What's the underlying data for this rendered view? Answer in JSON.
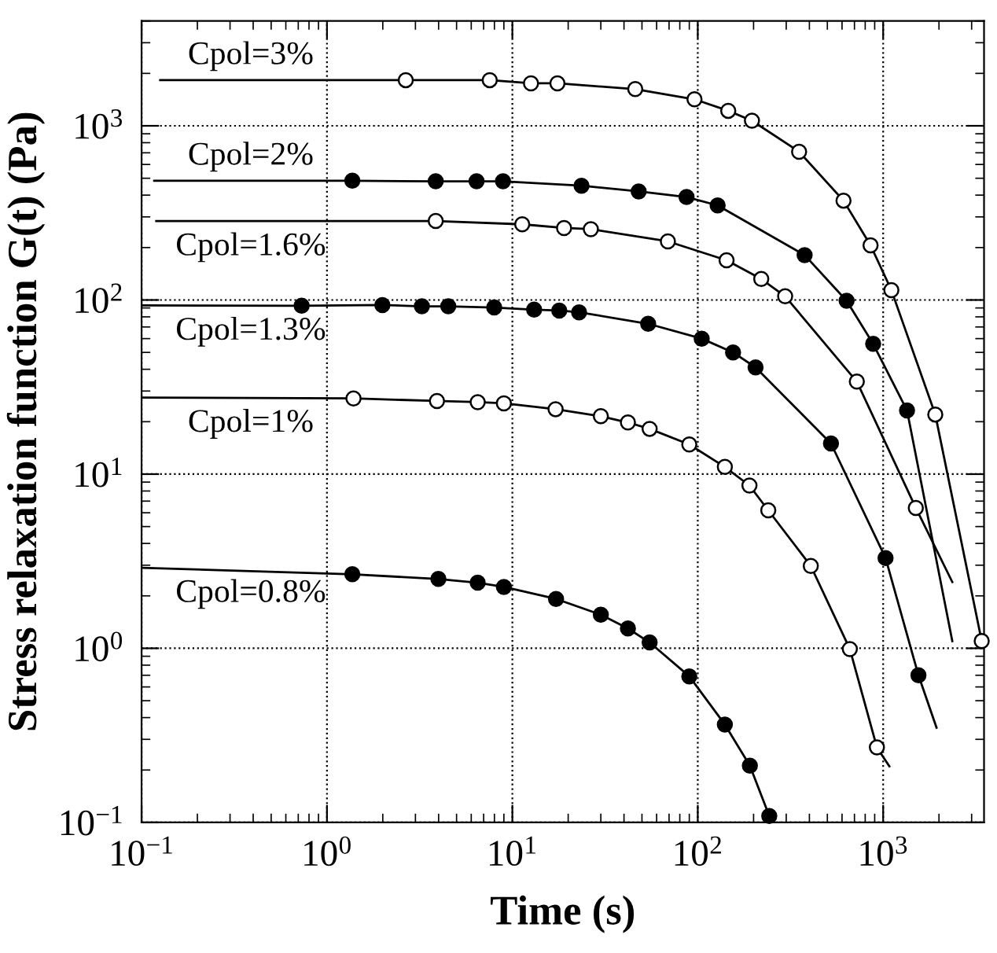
{
  "chart_data": {
    "type": "scatter",
    "xlabel": "Time (s)",
    "ylabel": "Stress relaxation function G(t) (Pa)",
    "log": "xy",
    "grid": true,
    "marker": "circle",
    "xlim": [
      0.1,
      3500
    ],
    "ylim": [
      0.1,
      4000
    ],
    "xticks": [
      {
        "value": 0.1,
        "label": "10$^{−1}$"
      },
      {
        "value": 1,
        "label": "10$^{0}$"
      },
      {
        "value": 10,
        "label": "10$^{1}$"
      },
      {
        "value": 100,
        "label": "10$^{2}$"
      },
      {
        "value": 1000,
        "label": "10$^{3}$"
      }
    ],
    "yticks": [
      {
        "value": 0.1,
        "label": "10$^{−1}$"
      },
      {
        "value": 1,
        "label": "10$^{0}$"
      },
      {
        "value": 10,
        "label": "10$^{1}$"
      },
      {
        "value": 100,
        "label": "10$^{2}$"
      },
      {
        "value": 1000,
        "label": "10$^{3}$"
      }
    ],
    "series": [
      {
        "name": "Cpol=3%",
        "type": "line",
        "color": "#000000",
        "x": [
          0.126,
          2.66,
          7.55,
          12.6,
          17.5,
          46,
          96,
          146,
          196,
          352,
          611,
          855,
          1107,
          1910,
          3400
        ],
        "values": [
          1830,
          1830,
          1830,
          1755,
          1755,
          1625,
          1420,
          1220,
          1070,
          710,
          372,
          206,
          114,
          22,
          1.1
        ],
        "marker": "none"
      },
      {
        "name": "Cpol=2%",
        "type": "line",
        "color": "#000000",
        "x": [
          0.117,
          1.37,
          3.86,
          6.41,
          8.9,
          23.6,
          48,
          87,
          128,
          377,
          635,
          883,
          1345,
          2360
        ],
        "values": [
          484,
          484,
          480,
          480,
          480,
          453,
          420,
          390,
          349,
          181,
          99,
          56,
          23.2,
          1.1
        ],
        "marker": "none"
      },
      {
        "name": "Cpol=1.6%",
        "type": "line",
        "color": "#000000",
        "x": [
          0.12,
          3.86,
          11.3,
          19,
          26.5,
          69,
          143,
          220,
          296,
          721,
          1500,
          2360
        ],
        "values": [
          284,
          284,
          272,
          259,
          255,
          217,
          169,
          132,
          105,
          34,
          6.4,
          2.4
        ],
        "marker": "none"
      },
      {
        "name": "Cpol=1.3%",
        "type": "line",
        "color": "#000000",
        "x": [
          0.1,
          0.73,
          1.99,
          3.25,
          4.51,
          7.98,
          13.1,
          17.9,
          22.9,
          54,
          105,
          155,
          205,
          523,
          1030,
          1550,
          1940
        ],
        "values": [
          93,
          92.7,
          93.5,
          92,
          92,
          90.5,
          88,
          87,
          85,
          73,
          60,
          50,
          41,
          15,
          3.3,
          0.7,
          0.35
        ],
        "marker": "none"
      },
      {
        "name": "Cpol=1%",
        "type": "line",
        "color": "#000000",
        "x": [
          0.1,
          1.39,
          3.92,
          6.5,
          9,
          17.1,
          30,
          42,
          55,
          90,
          140,
          190,
          240,
          407,
          661,
          925,
          1080
        ],
        "values": [
          27.5,
          27.2,
          26.3,
          25.9,
          25.5,
          23.6,
          21.5,
          19.8,
          18.2,
          14.8,
          11,
          8.6,
          6.2,
          2.97,
          0.99,
          0.27,
          0.21
        ],
        "marker": "none"
      },
      {
        "name": "Cpol=0.8%",
        "type": "line",
        "color": "#000000",
        "x": [
          0.1,
          1.37,
          3.99,
          6.5,
          9,
          17.2,
          30,
          42,
          55,
          90,
          140,
          191,
          243
        ],
        "values": [
          2.9,
          2.66,
          2.5,
          2.38,
          2.25,
          1.92,
          1.56,
          1.3,
          1.08,
          0.69,
          0.365,
          0.212,
          0.109
        ],
        "marker": "none"
      },
      {
        "color": "#ffffff",
        "x": [
          2.66,
          7.55,
          12.6,
          17.5,
          46,
          96,
          146,
          196,
          352,
          611,
          855,
          1107,
          1910,
          3400
        ],
        "values": [
          1830,
          1830,
          1755,
          1755,
          1625,
          1420,
          1220,
          1070,
          710,
          372,
          206,
          114,
          22,
          1.1
        ]
      },
      {
        "color": "#000000",
        "x": [
          1.37,
          3.86,
          6.41,
          8.9,
          23.6,
          48,
          87,
          128,
          377,
          635,
          883,
          1345
        ],
        "values": [
          484,
          480,
          480,
          480,
          453,
          420,
          390,
          349,
          181,
          99,
          56,
          23.2
        ]
      },
      {
        "color": "#ffffff",
        "x": [
          3.86,
          11.3,
          19,
          26.5,
          69,
          143,
          220,
          296,
          721,
          1500
        ],
        "values": [
          284,
          272,
          259,
          255,
          217,
          169,
          132,
          105,
          34,
          6.4
        ]
      },
      {
        "color": "#000000",
        "x": [
          0.73,
          1.99,
          3.25,
          4.51,
          7.98,
          13.1,
          17.9,
          22.9,
          54,
          105,
          155,
          205,
          523,
          1030,
          1550
        ],
        "values": [
          92.7,
          93.5,
          92,
          92,
          90.5,
          88,
          87,
          85,
          73,
          60,
          50,
          41,
          15,
          3.3,
          0.7
        ]
      },
      {
        "color": "#ffffff",
        "x": [
          1.39,
          3.92,
          6.5,
          9,
          17.1,
          30,
          42,
          55,
          90,
          140,
          190,
          240,
          407,
          661,
          925
        ],
        "values": [
          27.2,
          26.3,
          25.9,
          25.5,
          23.6,
          21.5,
          19.8,
          18.2,
          14.8,
          11,
          8.6,
          6.2,
          2.97,
          0.99,
          0.27
        ]
      },
      {
        "color": "#000000",
        "x": [
          1.37,
          3.99,
          6.5,
          9,
          17.2,
          30,
          42,
          55,
          90,
          140,
          191,
          243
        ],
        "values": [
          2.66,
          2.5,
          2.38,
          2.25,
          1.92,
          1.56,
          1.3,
          1.08,
          0.69,
          0.365,
          0.212,
          0.109
        ]
      }
    ]
  }
}
